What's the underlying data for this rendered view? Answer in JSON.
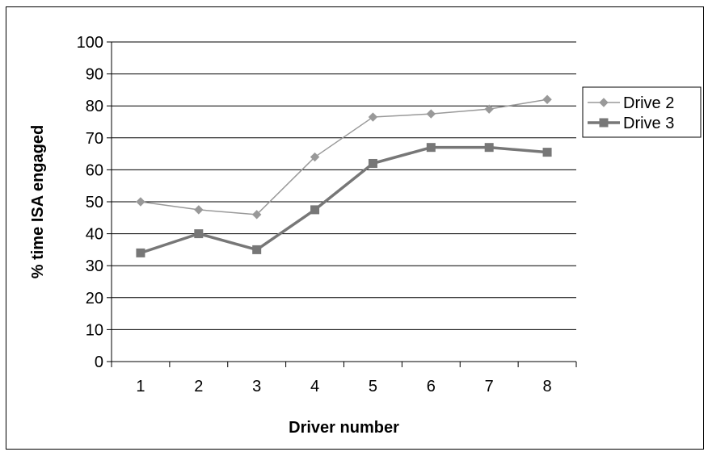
{
  "chart_data": {
    "type": "line",
    "title": "",
    "xlabel": "Driver number",
    "ylabel": "% time ISA engaged",
    "categories": [
      "1",
      "2",
      "3",
      "4",
      "5",
      "6",
      "7",
      "8"
    ],
    "ylim": [
      0,
      100
    ],
    "yticks": [
      "0",
      "10",
      "20",
      "30",
      "40",
      "50",
      "60",
      "70",
      "80",
      "90",
      "100"
    ],
    "grid": "horizontal",
    "legend_position": "right",
    "series": [
      {
        "name": "Drive 2",
        "values": [
          50,
          47.5,
          46,
          64,
          76.5,
          77.5,
          79,
          82
        ],
        "color": "#999999",
        "marker": "diamond"
      },
      {
        "name": "Drive 3",
        "values": [
          34,
          40,
          35,
          47.5,
          62,
          67,
          67,
          65.5
        ],
        "color": "#777777",
        "marker": "square"
      }
    ]
  }
}
